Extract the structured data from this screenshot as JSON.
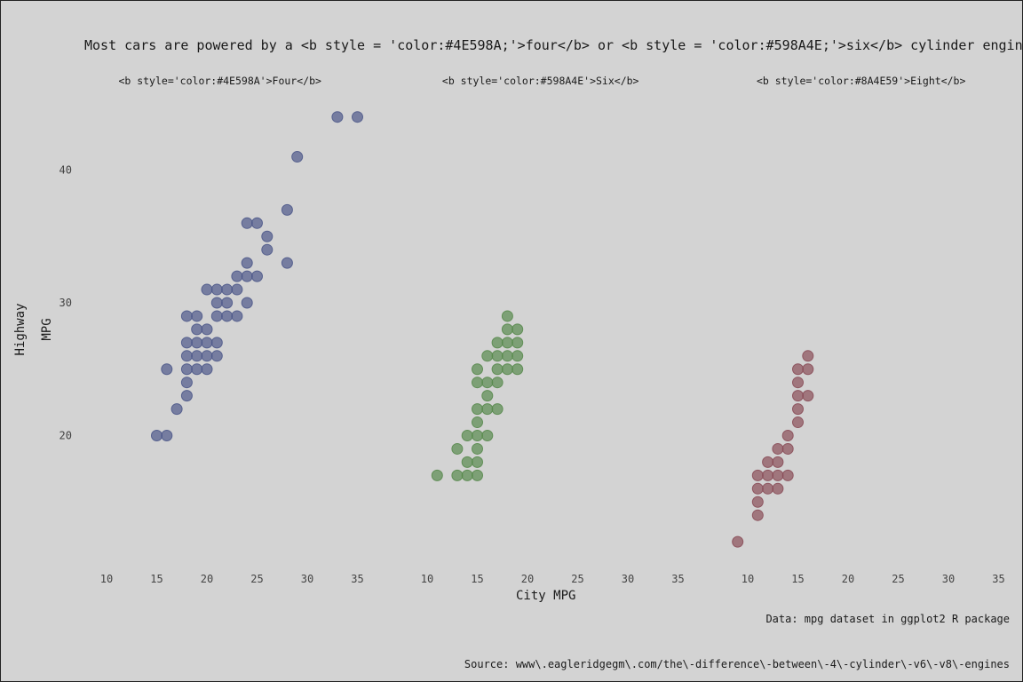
{
  "chart_data": {
    "type": "scatter",
    "title": "Most cars are powered by a <b style = 'color:#4E598A;'>four</b> or <b style = 'color:#598A4E;'>six</b> cylinder engine",
    "xlabel": "City MPG",
    "ylabel": [
      "Highway",
      "MPG"
    ],
    "caption": "Data: mpg dataset in ggplot2 R package",
    "source": "Source: www\\.eagleridgegm\\.com/the\\-difference\\-between\\-4\\-cylinder\\-v6\\-v8\\-engines",
    "x_ticks": [
      10,
      15,
      20,
      25,
      30,
      35
    ],
    "x_tick_labels": [
      "10",
      "15",
      "20",
      "25",
      "30",
      "35"
    ],
    "y_ticks": [
      20,
      30,
      40
    ],
    "y_tick_labels": [
      "20",
      "30",
      "40"
    ],
    "xlim": [
      9,
      37
    ],
    "ylim": [
      10,
      45
    ],
    "grid": false,
    "legend": "none",
    "panels": [
      {
        "label": "<b style='color:#4E598A'>Four</b>",
        "color": "#4E598A",
        "points": [
          [
            15,
            20
          ],
          [
            16,
            20
          ],
          [
            16,
            25
          ],
          [
            17,
            22
          ],
          [
            18,
            23
          ],
          [
            18,
            24
          ],
          [
            18,
            25
          ],
          [
            18,
            26
          ],
          [
            18,
            27
          ],
          [
            18,
            29
          ],
          [
            19,
            25
          ],
          [
            19,
            26
          ],
          [
            19,
            27
          ],
          [
            19,
            28
          ],
          [
            19,
            29
          ],
          [
            20,
            25
          ],
          [
            20,
            26
          ],
          [
            20,
            27
          ],
          [
            20,
            28
          ],
          [
            20,
            31
          ],
          [
            21,
            26
          ],
          [
            21,
            27
          ],
          [
            21,
            29
          ],
          [
            21,
            30
          ],
          [
            21,
            31
          ],
          [
            22,
            29
          ],
          [
            22,
            30
          ],
          [
            22,
            31
          ],
          [
            23,
            29
          ],
          [
            23,
            31
          ],
          [
            23,
            32
          ],
          [
            24,
            30
          ],
          [
            24,
            32
          ],
          [
            24,
            33
          ],
          [
            24,
            36
          ],
          [
            25,
            32
          ],
          [
            25,
            36
          ],
          [
            26,
            34
          ],
          [
            26,
            35
          ],
          [
            28,
            33
          ],
          [
            28,
            37
          ],
          [
            29,
            41
          ],
          [
            33,
            44
          ],
          [
            35,
            44
          ]
        ]
      },
      {
        "label": "<b style='color:#598A4E'>Six</b>",
        "color": "#598A4E",
        "points": [
          [
            11,
            17
          ],
          [
            13,
            17
          ],
          [
            13,
            19
          ],
          [
            14,
            17
          ],
          [
            14,
            18
          ],
          [
            14,
            20
          ],
          [
            15,
            17
          ],
          [
            15,
            18
          ],
          [
            15,
            19
          ],
          [
            15,
            20
          ],
          [
            15,
            21
          ],
          [
            15,
            22
          ],
          [
            15,
            24
          ],
          [
            15,
            25
          ],
          [
            16,
            20
          ],
          [
            16,
            22
          ],
          [
            16,
            23
          ],
          [
            16,
            24
          ],
          [
            16,
            26
          ],
          [
            17,
            22
          ],
          [
            17,
            24
          ],
          [
            17,
            25
          ],
          [
            17,
            26
          ],
          [
            17,
            27
          ],
          [
            18,
            25
          ],
          [
            18,
            26
          ],
          [
            18,
            27
          ],
          [
            18,
            28
          ],
          [
            18,
            29
          ],
          [
            19,
            25
          ],
          [
            19,
            26
          ],
          [
            19,
            27
          ],
          [
            19,
            28
          ]
        ]
      },
      {
        "label": "<b style='color:#8A4E59'>Eight</b>",
        "color": "#8A4E59",
        "points": [
          [
            9,
            12
          ],
          [
            11,
            14
          ],
          [
            11,
            15
          ],
          [
            11,
            16
          ],
          [
            11,
            17
          ],
          [
            12,
            16
          ],
          [
            12,
            17
          ],
          [
            12,
            18
          ],
          [
            13,
            16
          ],
          [
            13,
            17
          ],
          [
            13,
            18
          ],
          [
            13,
            19
          ],
          [
            14,
            17
          ],
          [
            14,
            19
          ],
          [
            14,
            20
          ],
          [
            15,
            21
          ],
          [
            15,
            22
          ],
          [
            15,
            23
          ],
          [
            15,
            24
          ],
          [
            15,
            25
          ],
          [
            16,
            23
          ],
          [
            16,
            25
          ],
          [
            16,
            26
          ]
        ]
      }
    ]
  }
}
